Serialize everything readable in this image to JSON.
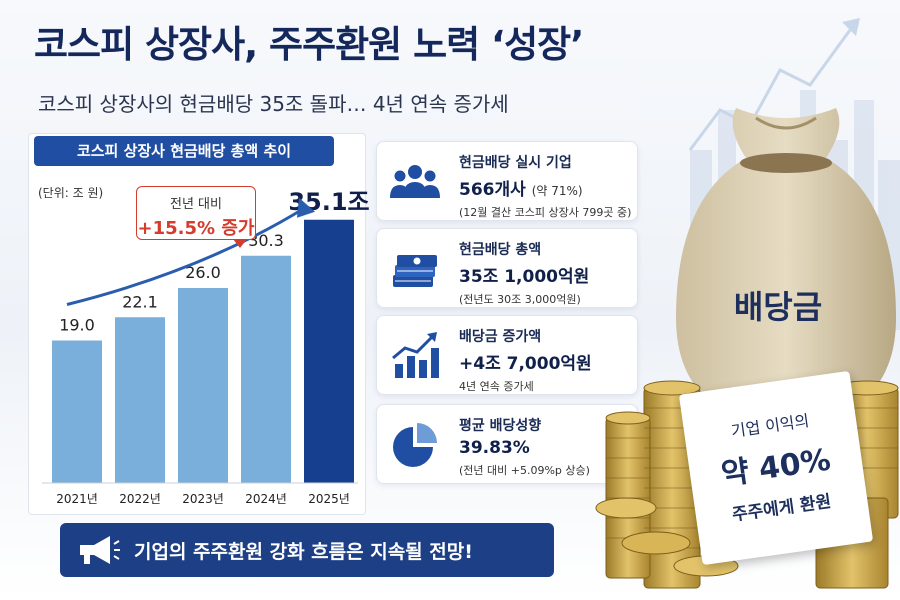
{
  "header": {
    "title": "코스피 상장사, 주주환원 노력 ‘성장’",
    "subtitle": "코스피 상장사의 현금배당 35조 돌파… 4년 연속 증가세"
  },
  "chart_data": {
    "type": "bar",
    "title": "코스피 상장사 현금배당 총액 추이",
    "unit_label": "(단위: 조 원)",
    "categories": [
      "2021년",
      "2022년",
      "2023년",
      "2024년",
      "2025년"
    ],
    "values": [
      19.0,
      22.1,
      26.0,
      30.3,
      35.1
    ],
    "value_labels": [
      "19.0",
      "22.1",
      "26.0",
      "30.3",
      "35.1조"
    ],
    "highlight_index": 4,
    "ylim": [
      0,
      40
    ],
    "grid": false,
    "annotation": {
      "line1": "전년 대비",
      "line2": "+15.5% 증가"
    },
    "colors": {
      "bar": "#7aaedb",
      "highlight": "#163f8f",
      "arrow": "#2a5db0",
      "callout": "#d43c2d"
    }
  },
  "cards": [
    {
      "icon": "people-icon",
      "label": "현금배당 실시 기업",
      "value": "566개사",
      "value_suffix": "(약 71%)",
      "note": "(12월 결산 코스피 상장사 799곳 중)"
    },
    {
      "icon": "cash-stack-icon",
      "label": "현금배당 총액",
      "value": "35조 1,000억원",
      "value_suffix": "",
      "note": "(전년도 30조 3,000억원)"
    },
    {
      "icon": "growth-chart-icon",
      "label": "배당금 증가액",
      "value": "+4조 7,000억원",
      "value_suffix": "",
      "note": "4년 연속 증가세"
    },
    {
      "icon": "pie-chart-icon",
      "label": "평균 배당성향",
      "value": "39.83%",
      "value_suffix": "",
      "note": "(전년 대비 +5.09%p 상승)"
    }
  ],
  "banner": {
    "icon": "megaphone-icon",
    "text": "기업의 주주환원 강화 흐름은 지속될 전망!"
  },
  "illustration": {
    "bag_label": "배당금",
    "card_line1": "기업 이익의",
    "card_line2": "약 40%",
    "card_line3": "주주에게 환원"
  },
  "colors": {
    "primary": "#1f4ea2",
    "navy": "#14285c",
    "accent_red": "#d43c2d"
  }
}
